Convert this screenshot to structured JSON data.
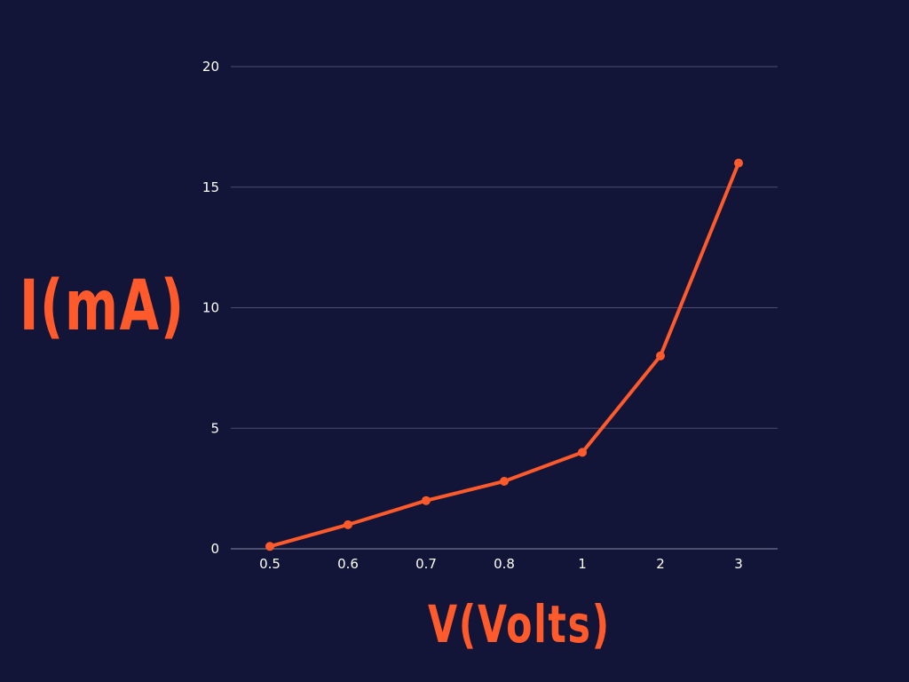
{
  "colors": {
    "background": "#131538",
    "series": "#ff5a2b",
    "grid": "#4b4d72",
    "tick_text": "#ffffff"
  },
  "chart_data": {
    "type": "line",
    "title": "",
    "xlabel": "V(Volts)",
    "ylabel": "I(mA)",
    "x_scale": "categorical",
    "categories": [
      "0.5",
      "0.6",
      "0.7",
      "0.8",
      "1",
      "2",
      "3"
    ],
    "series": [
      {
        "values": [
          0.1,
          1,
          2,
          2.8,
          4,
          8,
          16
        ]
      }
    ],
    "ylim": [
      0,
      20
    ],
    "yticks": [
      0,
      5,
      10,
      15,
      20
    ],
    "grid": true,
    "legend": "none",
    "markers": true
  }
}
